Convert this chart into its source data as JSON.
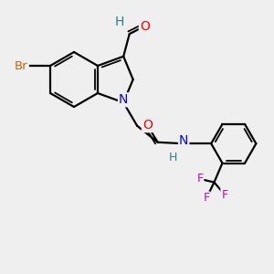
{
  "background_color": "#efefef",
  "atom_colors": {
    "C": "#000000",
    "H": "#2a8080",
    "O": "#ff0000",
    "N": "#0000ff",
    "Br": "#cc6600",
    "F": "#cc00cc"
  },
  "bond_color": "#000000",
  "bond_width": 1.6,
  "font_size": 10,
  "fig_size": [
    3.0,
    3.0
  ],
  "dpi": 100
}
